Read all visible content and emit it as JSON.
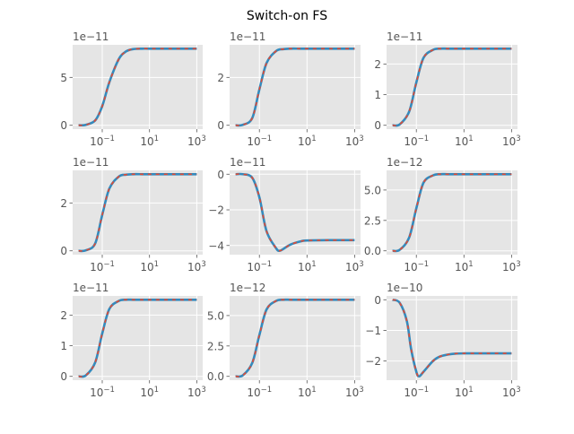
{
  "figure": {
    "title": "Switch-on FS"
  },
  "colors": {
    "axes_bg": "#E5E5E5",
    "grid": "#FFFFFF",
    "tick_text": "#555555",
    "solid_series": "#348ABD",
    "dashed_series": "#E24A33"
  },
  "chart_data": [
    {
      "type": "line",
      "xscale": "log",
      "xlim": [
        0.0056,
        1778
      ],
      "xticks": [
        {
          "v": 0.1,
          "base": "10",
          "exp": "−1"
        },
        {
          "v": 10,
          "base": "10",
          "exp": "1"
        },
        {
          "v": 1000,
          "base": "10",
          "exp": "3"
        }
      ],
      "offset_text": "1e−11",
      "ylim": [
        -0.4,
        8.4
      ],
      "yticks": [
        {
          "v": 0,
          "label": "0"
        },
        {
          "v": 5,
          "label": "5"
        }
      ],
      "x": [
        0.01,
        0.02,
        0.05,
        0.1,
        0.2,
        0.5,
        1,
        2,
        5,
        10,
        100,
        1000
      ],
      "y": [
        0,
        0.05,
        0.5,
        2.0,
        4.5,
        6.9,
        7.7,
        7.95,
        8.0,
        8.0,
        8.0,
        8.0
      ],
      "grid": true
    },
    {
      "type": "line",
      "xscale": "log",
      "xlim": [
        0.0056,
        1778
      ],
      "xticks": [
        {
          "v": 0.1,
          "base": "10",
          "exp": "−1"
        },
        {
          "v": 10,
          "base": "10",
          "exp": "1"
        },
        {
          "v": 1000,
          "base": "10",
          "exp": "3"
        }
      ],
      "offset_text": "1e−11",
      "ylim": [
        -0.16,
        3.36
      ],
      "yticks": [
        {
          "v": 0,
          "label": "0"
        },
        {
          "v": 2,
          "label": "2"
        }
      ],
      "x": [
        0.01,
        0.02,
        0.05,
        0.1,
        0.2,
        0.5,
        1,
        2,
        5,
        10,
        100,
        1000
      ],
      "y": [
        0,
        0.02,
        0.3,
        1.5,
        2.6,
        3.1,
        3.18,
        3.2,
        3.2,
        3.2,
        3.2,
        3.2
      ],
      "grid": true
    },
    {
      "type": "line",
      "xscale": "log",
      "xlim": [
        0.0056,
        1778
      ],
      "xticks": [
        {
          "v": 0.1,
          "base": "10",
          "exp": "−1"
        },
        {
          "v": 10,
          "base": "10",
          "exp": "1"
        },
        {
          "v": 1000,
          "base": "10",
          "exp": "3"
        }
      ],
      "offset_text": "1e−11",
      "ylim": [
        -0.125,
        2.625
      ],
      "yticks": [
        {
          "v": 0,
          "label": "0"
        },
        {
          "v": 1,
          "label": "1"
        },
        {
          "v": 2,
          "label": "2"
        }
      ],
      "x": [
        0.01,
        0.02,
        0.05,
        0.1,
        0.2,
        0.5,
        1,
        2,
        5,
        10,
        100,
        1000
      ],
      "y": [
        0,
        0.03,
        0.45,
        1.4,
        2.2,
        2.46,
        2.5,
        2.5,
        2.5,
        2.5,
        2.5,
        2.5
      ],
      "grid": true
    },
    {
      "type": "line",
      "xscale": "log",
      "xlim": [
        0.0056,
        1778
      ],
      "xticks": [
        {
          "v": 0.1,
          "base": "10",
          "exp": "−1"
        },
        {
          "v": 10,
          "base": "10",
          "exp": "1"
        },
        {
          "v": 1000,
          "base": "10",
          "exp": "3"
        }
      ],
      "offset_text": "1e−11",
      "ylim": [
        -0.16,
        3.36
      ],
      "yticks": [
        {
          "v": 0,
          "label": "0"
        },
        {
          "v": 2,
          "label": "2"
        }
      ],
      "x": [
        0.01,
        0.02,
        0.05,
        0.1,
        0.2,
        0.5,
        1,
        2,
        5,
        10,
        100,
        1000
      ],
      "y": [
        0,
        0.02,
        0.3,
        1.5,
        2.6,
        3.1,
        3.18,
        3.2,
        3.2,
        3.2,
        3.2,
        3.2
      ],
      "grid": true
    },
    {
      "type": "line",
      "xscale": "log",
      "xlim": [
        0.0056,
        1778
      ],
      "xticks": [
        {
          "v": 0.1,
          "base": "10",
          "exp": "−1"
        },
        {
          "v": 10,
          "base": "10",
          "exp": "1"
        },
        {
          "v": 1000,
          "base": "10",
          "exp": "3"
        }
      ],
      "offset_text": "1e−11",
      "ylim": [
        -4.515,
        0.215
      ],
      "yticks": [
        {
          "v": 0,
          "label": "0"
        },
        {
          "v": -2,
          "label": "−2"
        },
        {
          "v": -4,
          "label": "−4"
        }
      ],
      "x": [
        0.01,
        0.02,
        0.05,
        0.1,
        0.2,
        0.5,
        0.7,
        1,
        2,
        5,
        10,
        100,
        1000
      ],
      "y": [
        0,
        0,
        -0.2,
        -1.3,
        -3.2,
        -4.15,
        -4.3,
        -4.2,
        -3.95,
        -3.78,
        -3.72,
        -3.7,
        -3.7
      ],
      "grid": true
    },
    {
      "type": "line",
      "xscale": "log",
      "xlim": [
        0.0056,
        1778
      ],
      "xticks": [
        {
          "v": 0.1,
          "base": "10",
          "exp": "−1"
        },
        {
          "v": 10,
          "base": "10",
          "exp": "1"
        },
        {
          "v": 1000,
          "base": "10",
          "exp": "3"
        }
      ],
      "offset_text": "1e−12",
      "ylim": [
        -0.315,
        6.615
      ],
      "yticks": [
        {
          "v": 0,
          "label": "0.0"
        },
        {
          "v": 2.5,
          "label": "2.5"
        },
        {
          "v": 5,
          "label": "5.0"
        }
      ],
      "x": [
        0.01,
        0.02,
        0.05,
        0.1,
        0.2,
        0.5,
        1,
        2,
        5,
        10,
        100,
        1000
      ],
      "y": [
        0,
        0.08,
        1.1,
        3.5,
        5.6,
        6.2,
        6.3,
        6.3,
        6.3,
        6.3,
        6.3,
        6.3
      ],
      "grid": true
    },
    {
      "type": "line",
      "xscale": "log",
      "xlim": [
        0.0056,
        1778
      ],
      "xticks": [
        {
          "v": 0.1,
          "base": "10",
          "exp": "−1"
        },
        {
          "v": 10,
          "base": "10",
          "exp": "1"
        },
        {
          "v": 1000,
          "base": "10",
          "exp": "3"
        }
      ],
      "offset_text": "1e−11",
      "ylim": [
        -0.125,
        2.625
      ],
      "yticks": [
        {
          "v": 0,
          "label": "0"
        },
        {
          "v": 1,
          "label": "1"
        },
        {
          "v": 2,
          "label": "2"
        }
      ],
      "x": [
        0.01,
        0.02,
        0.05,
        0.1,
        0.2,
        0.5,
        1,
        2,
        5,
        10,
        100,
        1000
      ],
      "y": [
        0,
        0.03,
        0.45,
        1.4,
        2.2,
        2.46,
        2.5,
        2.5,
        2.5,
        2.5,
        2.5,
        2.5
      ],
      "grid": true
    },
    {
      "type": "line",
      "xscale": "log",
      "xlim": [
        0.0056,
        1778
      ],
      "xticks": [
        {
          "v": 0.1,
          "base": "10",
          "exp": "−1"
        },
        {
          "v": 10,
          "base": "10",
          "exp": "1"
        },
        {
          "v": 1000,
          "base": "10",
          "exp": "3"
        }
      ],
      "offset_text": "1e−12",
      "ylim": [
        -0.315,
        6.615
      ],
      "yticks": [
        {
          "v": 0,
          "label": "0.0"
        },
        {
          "v": 2.5,
          "label": "2.5"
        },
        {
          "v": 5,
          "label": "5.0"
        }
      ],
      "x": [
        0.01,
        0.02,
        0.05,
        0.1,
        0.2,
        0.5,
        1,
        2,
        5,
        10,
        100,
        1000
      ],
      "y": [
        0,
        0.08,
        1.1,
        3.4,
        5.5,
        6.2,
        6.3,
        6.3,
        6.3,
        6.3,
        6.3,
        6.3
      ],
      "grid": true
    },
    {
      "type": "line",
      "xscale": "log",
      "xlim": [
        0.0056,
        1778
      ],
      "xticks": [
        {
          "v": 0.1,
          "base": "10",
          "exp": "−1"
        },
        {
          "v": 10,
          "base": "10",
          "exp": "1"
        },
        {
          "v": 1000,
          "base": "10",
          "exp": "3"
        }
      ],
      "offset_text": "1e−10",
      "ylim": [
        -2.625,
        0.125
      ],
      "yticks": [
        {
          "v": 0,
          "label": "0"
        },
        {
          "v": -1,
          "label": "−1"
        },
        {
          "v": -2,
          "label": "−2"
        }
      ],
      "x": [
        0.01,
        0.02,
        0.04,
        0.06,
        0.1,
        0.13,
        0.2,
        0.5,
        1,
        3,
        10,
        100,
        1000
      ],
      "y": [
        0,
        -0.1,
        -0.7,
        -1.6,
        -2.35,
        -2.5,
        -2.35,
        -2.0,
        -1.85,
        -1.77,
        -1.75,
        -1.75,
        -1.75
      ],
      "grid": true
    }
  ]
}
